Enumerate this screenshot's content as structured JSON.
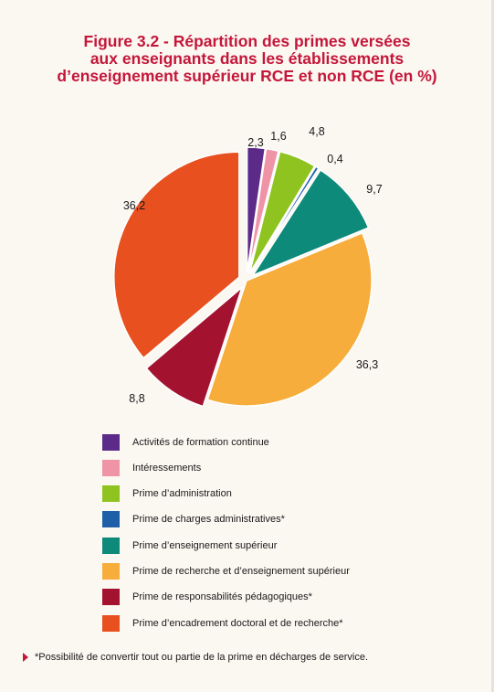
{
  "title_lines": [
    "Figure 3.2 - Répartition des primes versées",
    "aux enseignants dans les établissements",
    "d’enseignement supérieur RCE et non RCE (en %)"
  ],
  "chart_data": {
    "type": "pie",
    "title": "Figure 3.2 - Répartition des primes versées aux enseignants dans les établissements d’enseignement supérieur RCE et non RCE (en %)",
    "slices": [
      {
        "label": "Activités de formation continue",
        "value": 2.3,
        "display": "2,3",
        "color": "#5c2b8a",
        "exploded": true
      },
      {
        "label": "Intéressements",
        "value": 1.6,
        "display": "1,6",
        "color": "#ef93a6",
        "exploded": true
      },
      {
        "label": "Prime d’administration",
        "value": 4.8,
        "display": "4,8",
        "color": "#8fc31f",
        "exploded": true
      },
      {
        "label": "Prime de charges administratives*",
        "value": 0.4,
        "display": "0,4",
        "color": "#1f5fa8",
        "exploded": true
      },
      {
        "label": "Prime d’enseignement supérieur",
        "value": 9.7,
        "display": "9,7",
        "color": "#0e8a7a",
        "exploded": true
      },
      {
        "label": "Prime de recherche et d’enseignement supérieur",
        "value": 36.3,
        "display": "36,3",
        "color": "#f6ad3c",
        "exploded": false
      },
      {
        "label": "Prime de responsabilités pédagogiques*",
        "value": 8.8,
        "display": "8,8",
        "color": "#a3132f",
        "exploded": true
      },
      {
        "label": "Prime d’encadrement doctoral et de recherche*",
        "value": 36.2,
        "display": "36,2",
        "color": "#e8501f",
        "exploded": true
      }
    ]
  },
  "footnote": "*Possibilité de convertir tout ou partie de la prime en décharges de service."
}
